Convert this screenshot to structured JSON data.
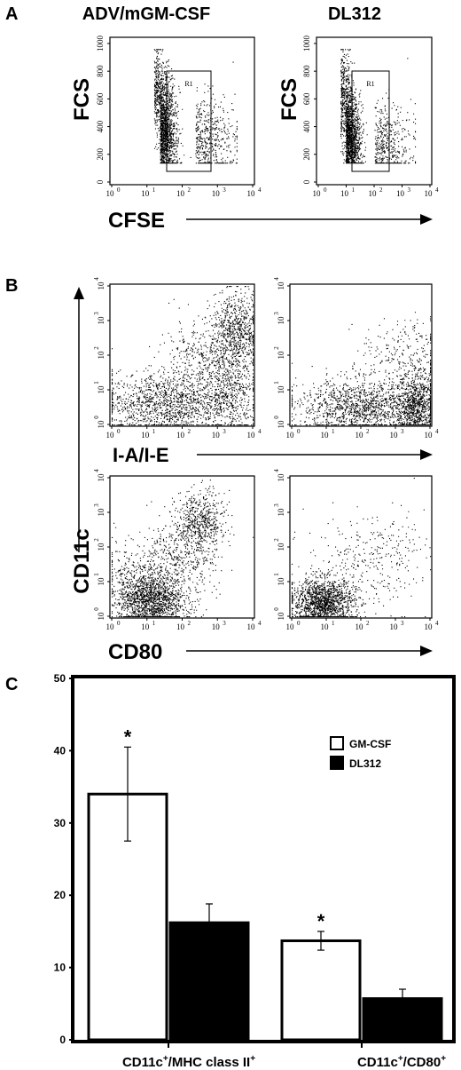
{
  "panels": {
    "A": {
      "letter": "A",
      "titles": [
        "ADV/mGM-CSF",
        "DL312"
      ],
      "y_label": "FCS",
      "x_label": "CFSE",
      "gate_label": "R1",
      "y_ticks": [
        "0",
        "200",
        "400",
        "600",
        "800",
        "1000"
      ],
      "x_ticks": [
        "10",
        "10",
        "10",
        "10",
        "10"
      ],
      "x_tick_exponents": [
        "0",
        "1",
        "2",
        "3",
        "4"
      ]
    },
    "B": {
      "letter": "B",
      "y_label": "CD11c",
      "x_label_top": "I-A/I-E",
      "x_label_bottom": "CD80",
      "ticks": [
        "10",
        "10",
        "10",
        "10",
        "10"
      ],
      "tick_exponents": [
        "0",
        "1",
        "2",
        "3",
        "4"
      ]
    },
    "C": {
      "letter": "C"
    }
  },
  "chart_data": {
    "type": "bar",
    "categories": [
      "CD11c+/MHC class II+",
      "CD11c+/CD80+"
    ],
    "category_labels": [
      {
        "base1": "CD11c",
        "sup1": "+",
        "base2": "/MHC class II",
        "sup2": "+"
      },
      {
        "base1": "CD11c",
        "sup1": "+",
        "base2": "/CD80",
        "sup2": "+"
      }
    ],
    "series": [
      {
        "name": "GM-CSF",
        "values": [
          34,
          13.7
        ],
        "errors": [
          6.5,
          1.3
        ],
        "fill": "#ffffff",
        "significance": [
          "*",
          "*"
        ]
      },
      {
        "name": "DL312",
        "values": [
          16.2,
          5.7
        ],
        "errors": [
          2.6,
          1.3
        ],
        "fill": "#000000",
        "significance": [
          "",
          ""
        ]
      }
    ],
    "ylim": [
      0,
      50
    ],
    "y_ticks": [
      "0",
      "10",
      "20",
      "30",
      "40",
      "50"
    ],
    "legend_placement": "top-right",
    "grid": false
  },
  "colors": {
    "ink": "#000000",
    "paper": "#ffffff"
  }
}
